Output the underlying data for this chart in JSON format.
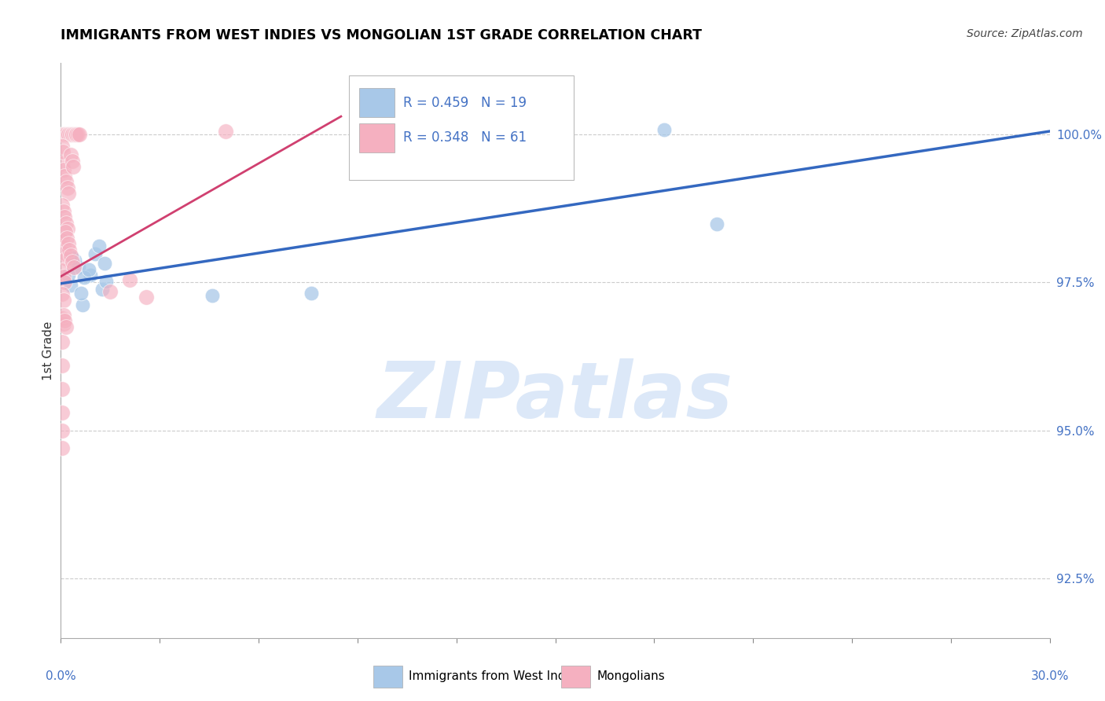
{
  "title": "IMMIGRANTS FROM WEST INDIES VS MONGOLIAN 1ST GRADE CORRELATION CHART",
  "source": "Source: ZipAtlas.com",
  "ylabel": "1st Grade",
  "xlim": [
    0.0,
    30.0
  ],
  "ylim": [
    91.5,
    101.2
  ],
  "yticks": [
    92.5,
    95.0,
    97.5,
    100.0
  ],
  "ytick_labels": [
    "92.5%",
    "95.0%",
    "97.5%",
    "100.0%"
  ],
  "xtick_left_label": "0.0%",
  "xtick_right_label": "30.0%",
  "legend_blue_r": "R = 0.459",
  "legend_blue_n": "N = 19",
  "legend_pink_r": "R = 0.348",
  "legend_pink_n": "N = 61",
  "blue_color": "#a8c8e8",
  "pink_color": "#f5b0c0",
  "blue_line_color": "#3468c0",
  "pink_line_color": "#d04070",
  "watermark_text": "ZIPatlas",
  "watermark_color": "#dce8f8",
  "blue_trend_x": [
    0.0,
    30.0
  ],
  "blue_trend_y": [
    97.48,
    100.05
  ],
  "pink_trend_x": [
    0.0,
    8.5
  ],
  "pink_trend_y": [
    97.6,
    100.3
  ],
  "blue_scatter_x": [
    0.3,
    0.55,
    0.65,
    0.9,
    1.05,
    1.25,
    0.42,
    4.6,
    7.6,
    18.3,
    19.9,
    0.35,
    0.7,
    1.15,
    0.85,
    1.38,
    0.22,
    0.62,
    1.32
  ],
  "blue_scatter_y": [
    97.45,
    97.75,
    97.12,
    97.62,
    97.98,
    97.38,
    97.88,
    97.28,
    97.32,
    100.08,
    98.48,
    97.92,
    97.58,
    98.12,
    97.72,
    97.52,
    97.62,
    97.32,
    97.82
  ],
  "pink_scatter_x": [
    0.04,
    0.08,
    0.12,
    0.16,
    0.2,
    0.24,
    0.28,
    0.32,
    0.36,
    0.4,
    0.44,
    0.48,
    0.52,
    0.56,
    0.04,
    0.08,
    0.12,
    0.16,
    0.2,
    0.24,
    0.04,
    0.08,
    0.12,
    0.16,
    0.2,
    0.04,
    0.08,
    0.12,
    0.16,
    0.04,
    0.08,
    0.12,
    0.04,
    0.08,
    0.04,
    0.08,
    0.04,
    0.04,
    0.04,
    0.04,
    0.04,
    0.04,
    1.5,
    2.1,
    2.6,
    0.04,
    0.06,
    5.0,
    0.3,
    0.34,
    0.38,
    0.14,
    0.18,
    0.22,
    0.26,
    0.3,
    0.35,
    0.4,
    0.08,
    0.12,
    0.16
  ],
  "pink_scatter_y": [
    100.0,
    100.0,
    100.0,
    100.0,
    100.0,
    100.0,
    100.0,
    100.0,
    100.0,
    100.0,
    100.0,
    100.0,
    100.0,
    100.0,
    99.5,
    99.4,
    99.3,
    99.2,
    99.1,
    99.0,
    98.8,
    98.7,
    98.6,
    98.5,
    98.4,
    98.2,
    98.1,
    98.0,
    97.9,
    97.7,
    97.6,
    97.5,
    97.3,
    97.2,
    96.9,
    96.8,
    96.5,
    96.1,
    95.7,
    95.3,
    95.0,
    94.7,
    97.35,
    97.55,
    97.25,
    99.8,
    99.7,
    100.05,
    99.65,
    99.55,
    99.45,
    98.35,
    98.25,
    98.15,
    98.05,
    97.95,
    97.85,
    97.75,
    96.95,
    96.85,
    96.75
  ]
}
